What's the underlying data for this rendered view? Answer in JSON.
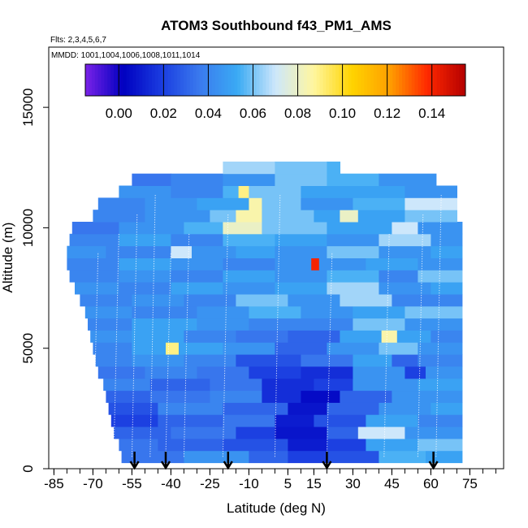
{
  "chart_data": {
    "type": "heatmap",
    "title": "ATOM3 Southbound f43_PM1_AMS",
    "note_flights": "Flts: 2,3,4,5,6,7",
    "note_dates": "MMDD: 1001,1004,1006,1008,1011,1014",
    "xlabel": "Latitude (deg N)",
    "ylabel": "Altitude (m)",
    "xlim": [
      -87,
      88
    ],
    "ylim": [
      0,
      17500
    ],
    "x_ticks": [
      -85,
      -70,
      -55,
      -40,
      -25,
      -10,
      5,
      15,
      30,
      45,
      60,
      75
    ],
    "x_tick_labels": [
      "-85",
      "-70",
      "-55",
      "-40",
      "-25",
      "-10",
      "5",
      "15",
      "30",
      "45",
      "60",
      "75"
    ],
    "y_ticks": [
      0,
      5000,
      10000,
      15000
    ],
    "y_tick_labels": [
      "0",
      "5000",
      "10000",
      "15000"
    ],
    "colorbar": {
      "min": -0.015,
      "max": 0.155,
      "ticks": [
        0.0,
        0.02,
        0.04,
        0.06,
        0.08,
        0.1,
        0.12,
        0.14
      ],
      "tick_labels": [
        "0.00",
        "0.02",
        "0.04",
        "0.06",
        "0.08",
        "0.10",
        "0.12",
        "0.14"
      ],
      "colors": [
        "#7a22e8",
        "#0000c0",
        "#1a3ce0",
        "#3a7aee",
        "#3aaaf4",
        "#cde7fb",
        "#fff6a0",
        "#ffd400",
        "#ffa000",
        "#ff2800",
        "#b40000"
      ]
    },
    "profile_arrows_latitude": [
      -54,
      -42,
      -18,
      20,
      61
    ],
    "bands": [
      {
        "alt": 500,
        "lat0": -59,
        "lat1": 72,
        "segments": [
          [
            -59,
            0.035
          ],
          [
            -35,
            0.045
          ],
          [
            -10,
            0.03
          ],
          [
            5,
            0.02
          ],
          [
            20,
            0.025
          ],
          [
            40,
            0.055
          ],
          [
            58,
            0.05
          ]
        ]
      },
      {
        "alt": 1000,
        "lat0": -60,
        "lat1": 72,
        "segments": [
          [
            -60,
            0.035
          ],
          [
            -45,
            0.03
          ],
          [
            -20,
            0.025
          ],
          [
            5,
            0.01
          ],
          [
            20,
            0.02
          ],
          [
            35,
            0.05
          ],
          [
            55,
            0.06
          ]
        ]
      },
      {
        "alt": 1500,
        "lat0": -62,
        "lat1": 72,
        "segments": [
          [
            -62,
            0.03
          ],
          [
            -40,
            0.035
          ],
          [
            -15,
            0.02
          ],
          [
            0,
            0.008
          ],
          [
            20,
            0.03
          ],
          [
            32,
            0.07
          ],
          [
            50,
            0.045
          ]
        ]
      },
      {
        "alt": 2000,
        "lat0": -63,
        "lat1": 72,
        "segments": [
          [
            -63,
            0.02
          ],
          [
            -45,
            0.03
          ],
          [
            -20,
            0.035
          ],
          [
            0,
            0.01
          ],
          [
            15,
            0.025
          ],
          [
            35,
            0.05
          ],
          [
            55,
            0.04
          ]
        ]
      },
      {
        "alt": 2500,
        "lat0": -64,
        "lat1": 72,
        "segments": [
          [
            -64,
            0.025
          ],
          [
            -45,
            0.04
          ],
          [
            -20,
            0.03
          ],
          [
            5,
            0.008
          ],
          [
            20,
            0.03
          ],
          [
            40,
            0.045
          ],
          [
            60,
            0.05
          ]
        ]
      },
      {
        "alt": 3000,
        "lat0": -65,
        "lat1": 72,
        "segments": [
          [
            -65,
            0.03
          ],
          [
            -48,
            0.035
          ],
          [
            -25,
            0.04
          ],
          [
            -5,
            0.015
          ],
          [
            10,
            0.005
          ],
          [
            25,
            0.03
          ],
          [
            45,
            0.045
          ]
        ]
      },
      {
        "alt": 3500,
        "lat0": -66,
        "lat1": 72,
        "segments": [
          [
            -66,
            0.04
          ],
          [
            -48,
            0.03
          ],
          [
            -25,
            0.035
          ],
          [
            -5,
            0.015
          ],
          [
            15,
            0.02
          ],
          [
            30,
            0.045
          ],
          [
            55,
            0.05
          ]
        ]
      },
      {
        "alt": 4000,
        "lat0": -68,
        "lat1": 72,
        "segments": [
          [
            -68,
            0.035
          ],
          [
            -50,
            0.04
          ],
          [
            -30,
            0.035
          ],
          [
            -10,
            0.02
          ],
          [
            10,
            0.015
          ],
          [
            30,
            0.045
          ],
          [
            50,
            0.02
          ],
          [
            58,
            0.045
          ]
        ]
      },
      {
        "alt": 4500,
        "lat0": -69,
        "lat1": 72,
        "segments": [
          [
            -69,
            0.04
          ],
          [
            -55,
            0.045
          ],
          [
            -35,
            0.04
          ],
          [
            -15,
            0.025
          ],
          [
            10,
            0.035
          ],
          [
            30,
            0.05
          ],
          [
            45,
            0.03
          ],
          [
            55,
            0.04
          ]
        ]
      },
      {
        "alt": 5000,
        "lat0": -70,
        "lat1": 72,
        "segments": [
          [
            -70,
            0.04
          ],
          [
            -55,
            0.05
          ],
          [
            -42,
            0.09
          ],
          [
            -37,
            0.05
          ],
          [
            -20,
            0.045
          ],
          [
            0,
            0.03
          ],
          [
            20,
            0.045
          ],
          [
            40,
            0.06
          ],
          [
            55,
            0.045
          ]
        ]
      },
      {
        "alt": 5500,
        "lat0": -71,
        "lat1": 72,
        "segments": [
          [
            -71,
            0.045
          ],
          [
            -55,
            0.05
          ],
          [
            -35,
            0.04
          ],
          [
            -15,
            0.035
          ],
          [
            5,
            0.03
          ],
          [
            25,
            0.05
          ],
          [
            41,
            0.085
          ],
          [
            47,
            0.05
          ],
          [
            60,
            0.04
          ]
        ]
      },
      {
        "alt": 6000,
        "lat0": -72,
        "lat1": 72,
        "segments": [
          [
            -72,
            0.04
          ],
          [
            -55,
            0.05
          ],
          [
            -30,
            0.045
          ],
          [
            -10,
            0.04
          ],
          [
            10,
            0.04
          ],
          [
            30,
            0.06
          ],
          [
            50,
            0.045
          ]
        ]
      },
      {
        "alt": 6500,
        "lat0": -73,
        "lat1": 72,
        "segments": [
          [
            -73,
            0.045
          ],
          [
            -55,
            0.04
          ],
          [
            -30,
            0.045
          ],
          [
            -10,
            0.055
          ],
          [
            10,
            0.045
          ],
          [
            30,
            0.05
          ],
          [
            50,
            0.06
          ]
        ]
      },
      {
        "alt": 7000,
        "lat0": -75,
        "lat1": 72,
        "segments": [
          [
            -75,
            0.04
          ],
          [
            -55,
            0.045
          ],
          [
            -35,
            0.04
          ],
          [
            -15,
            0.06
          ],
          [
            5,
            0.045
          ],
          [
            25,
            0.065
          ],
          [
            45,
            0.04
          ]
        ]
      },
      {
        "alt": 7500,
        "lat0": -77,
        "lat1": 72,
        "segments": [
          [
            -77,
            0.045
          ],
          [
            -60,
            0.04
          ],
          [
            -40,
            0.05
          ],
          [
            -20,
            0.045
          ],
          [
            0,
            0.05
          ],
          [
            20,
            0.065
          ],
          [
            40,
            0.045
          ],
          [
            60,
            0.05
          ]
        ]
      },
      {
        "alt": 8000,
        "lat0": -79,
        "lat1": 72,
        "segments": [
          [
            -79,
            0.04
          ],
          [
            -60,
            0.045
          ],
          [
            -40,
            0.04
          ],
          [
            -20,
            0.05
          ],
          [
            0,
            0.045
          ],
          [
            20,
            0.055
          ],
          [
            40,
            0.04
          ],
          [
            55,
            0.06
          ]
        ]
      },
      {
        "alt": 8500,
        "lat0": -80,
        "lat1": 72,
        "segments": [
          [
            -80,
            0.04
          ],
          [
            -60,
            0.05
          ],
          [
            -40,
            0.045
          ],
          [
            -20,
            0.04
          ],
          [
            0,
            0.045
          ],
          [
            14,
            0.14
          ],
          [
            17,
            0.045
          ],
          [
            35,
            0.05
          ],
          [
            55,
            0.045
          ]
        ]
      },
      {
        "alt": 9000,
        "lat0": -80,
        "lat1": 72,
        "segments": [
          [
            -80,
            0.045
          ],
          [
            -65,
            0.04
          ],
          [
            -40,
            0.07
          ],
          [
            -32,
            0.045
          ],
          [
            -15,
            0.05
          ],
          [
            0,
            0.045
          ],
          [
            20,
            0.06
          ],
          [
            40,
            0.045
          ],
          [
            60,
            0.05
          ]
        ]
      },
      {
        "alt": 9500,
        "lat0": -79,
        "lat1": 72,
        "segments": [
          [
            -79,
            0.04
          ],
          [
            -60,
            0.05
          ],
          [
            -40,
            0.04
          ],
          [
            -20,
            0.055
          ],
          [
            0,
            0.05
          ],
          [
            20,
            0.045
          ],
          [
            40,
            0.065
          ],
          [
            60,
            0.045
          ]
        ]
      },
      {
        "alt": 10000,
        "lat0": -78,
        "lat1": 72,
        "segments": [
          [
            -78,
            0.035
          ],
          [
            -60,
            0.045
          ],
          [
            -35,
            0.055
          ],
          [
            -20,
            0.08
          ],
          [
            -5,
            0.06
          ],
          [
            20,
            0.05
          ],
          [
            45,
            0.07
          ],
          [
            55,
            0.045
          ]
        ]
      },
      {
        "alt": 10500,
        "lat0": -70,
        "lat1": 70,
        "segments": [
          [
            -70,
            0.04
          ],
          [
            -50,
            0.045
          ],
          [
            -25,
            0.06
          ],
          [
            -15,
            0.085
          ],
          [
            -5,
            0.06
          ],
          [
            15,
            0.05
          ],
          [
            25,
            0.08
          ],
          [
            32,
            0.05
          ],
          [
            50,
            0.06
          ]
        ]
      },
      {
        "alt": 11000,
        "lat0": -68,
        "lat1": 70,
        "segments": [
          [
            -68,
            0.04
          ],
          [
            -50,
            0.045
          ],
          [
            -30,
            0.05
          ],
          [
            -10,
            0.085
          ],
          [
            -5,
            0.06
          ],
          [
            10,
            0.045
          ],
          [
            30,
            0.055
          ],
          [
            50,
            0.07
          ]
        ]
      },
      {
        "alt": 11500,
        "lat0": -60,
        "lat1": 70,
        "segments": [
          [
            -60,
            0.045
          ],
          [
            -40,
            0.04
          ],
          [
            -20,
            0.055
          ],
          [
            -14,
            0.09
          ],
          [
            -10,
            0.06
          ],
          [
            10,
            0.05
          ],
          [
            30,
            0.05
          ],
          [
            50,
            0.045
          ]
        ]
      },
      {
        "alt": 12000,
        "lat0": -55,
        "lat1": 62,
        "segments": [
          [
            -55,
            0.035
          ],
          [
            -40,
            0.04
          ],
          [
            -20,
            0.045
          ],
          [
            0,
            0.06
          ],
          [
            20,
            0.055
          ],
          [
            40,
            0.045
          ]
        ]
      },
      {
        "alt": 12500,
        "lat0": -20,
        "lat1": 25,
        "segments": [
          [
            -20,
            0.065
          ],
          [
            0,
            0.06
          ],
          [
            20,
            0.055
          ]
        ]
      }
    ]
  }
}
